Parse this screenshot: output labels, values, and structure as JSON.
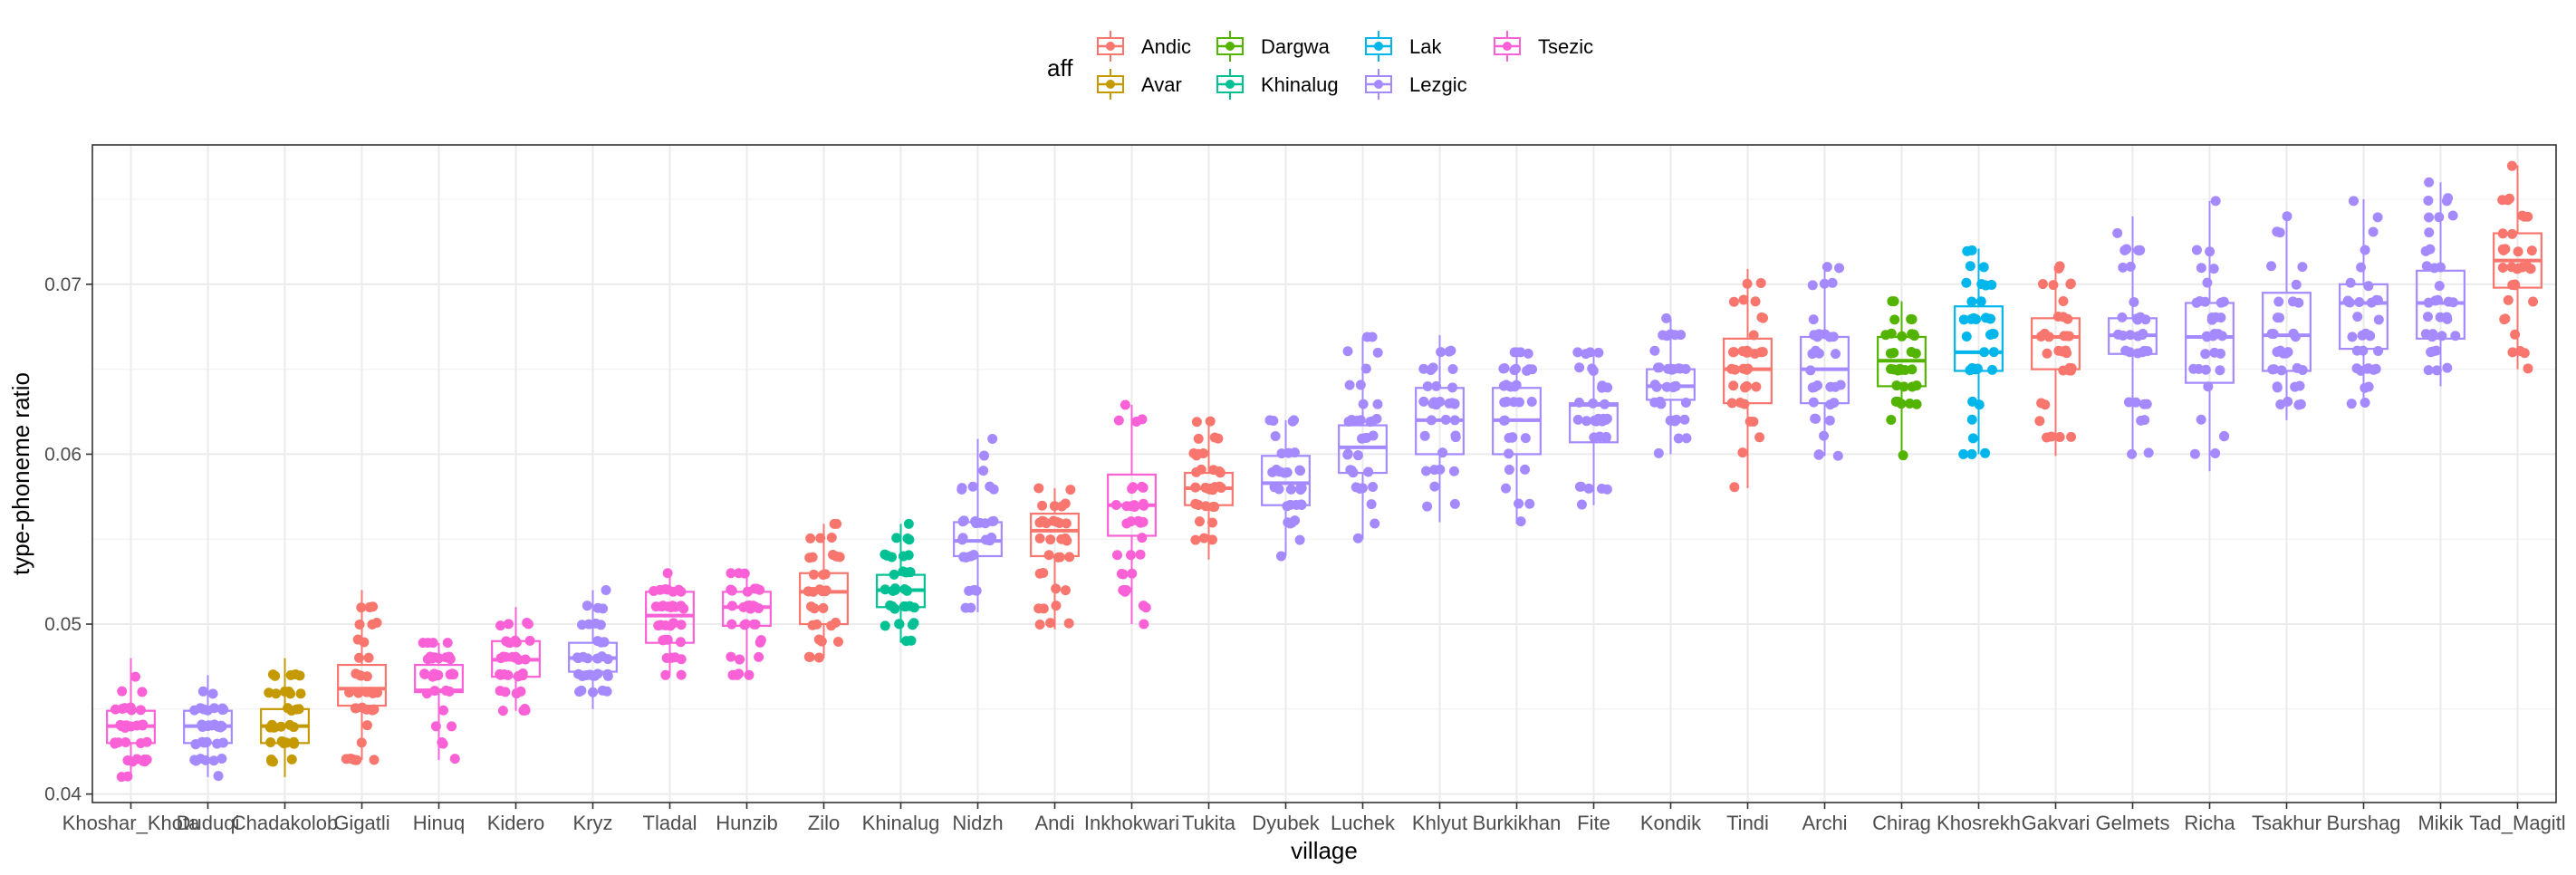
{
  "chart_data": {
    "type": "box",
    "xlabel": "village",
    "ylabel": "type-phoneme ratio",
    "ylim": [
      0.0395,
      0.0782
    ],
    "yticks": [
      0.04,
      0.05,
      0.06,
      0.07
    ],
    "ytick_labels": [
      "0.04",
      "0.05",
      "0.06",
      "0.07"
    ],
    "grid": true,
    "legend": {
      "title": "aff",
      "position": "top",
      "entries": [
        {
          "name": "Andic",
          "color": "#F8766D"
        },
        {
          "name": "Avar",
          "color": "#C49A00"
        },
        {
          "name": "Dargwa",
          "color": "#53B400"
        },
        {
          "name": "Khinalug",
          "color": "#00C094"
        },
        {
          "name": "Lak",
          "color": "#00B6EB"
        },
        {
          "name": "Lezgic",
          "color": "#A58AFF"
        },
        {
          "name": "Tsezic",
          "color": "#FB61D7"
        }
      ]
    },
    "villages": [
      {
        "name": "Khoshar_Khota",
        "aff": "Tsezic",
        "q1": 0.043,
        "median": 0.044,
        "q3": 0.0449,
        "wlo": 0.041,
        "whi": 0.048
      },
      {
        "name": "Duduqi",
        "aff": "Lezgic",
        "q1": 0.043,
        "median": 0.044,
        "q3": 0.0449,
        "wlo": 0.041,
        "whi": 0.047
      },
      {
        "name": "Chadakolob",
        "aff": "Avar",
        "q1": 0.043,
        "median": 0.044,
        "q3": 0.045,
        "wlo": 0.041,
        "whi": 0.048
      },
      {
        "name": "Gigatli",
        "aff": "Andic",
        "q1": 0.0452,
        "median": 0.0462,
        "q3": 0.0476,
        "wlo": 0.042,
        "whi": 0.052
      },
      {
        "name": "Hinuq",
        "aff": "Tsezic",
        "q1": 0.046,
        "median": 0.0461,
        "q3": 0.0476,
        "wlo": 0.042,
        "whi": 0.0489
      },
      {
        "name": "Kidero",
        "aff": "Tsezic",
        "q1": 0.0469,
        "median": 0.0479,
        "q3": 0.049,
        "wlo": 0.0449,
        "whi": 0.051
      },
      {
        "name": "Kryz",
        "aff": "Lezgic",
        "q1": 0.0472,
        "median": 0.048,
        "q3": 0.0489,
        "wlo": 0.045,
        "whi": 0.052
      },
      {
        "name": "Tladal",
        "aff": "Tsezic",
        "q1": 0.0489,
        "median": 0.0505,
        "q3": 0.0519,
        "wlo": 0.047,
        "whi": 0.053
      },
      {
        "name": "Hunzib",
        "aff": "Tsezic",
        "q1": 0.0499,
        "median": 0.051,
        "q3": 0.0519,
        "wlo": 0.047,
        "whi": 0.053
      },
      {
        "name": "Zilo",
        "aff": "Andic",
        "q1": 0.05,
        "median": 0.0519,
        "q3": 0.053,
        "wlo": 0.048,
        "whi": 0.0559
      },
      {
        "name": "Khinalug",
        "aff": "Khinalug",
        "q1": 0.051,
        "median": 0.052,
        "q3": 0.0529,
        "wlo": 0.0489,
        "whi": 0.0559
      },
      {
        "name": "Nidzh",
        "aff": "Lezgic",
        "q1": 0.054,
        "median": 0.0549,
        "q3": 0.056,
        "wlo": 0.0507,
        "whi": 0.0609
      },
      {
        "name": "Andi",
        "aff": "Andic",
        "q1": 0.054,
        "median": 0.0555,
        "q3": 0.0565,
        "wlo": 0.0497,
        "whi": 0.058
      },
      {
        "name": "Inkhokwari",
        "aff": "Tsezic",
        "q1": 0.0552,
        "median": 0.057,
        "q3": 0.0588,
        "wlo": 0.05,
        "whi": 0.0629
      },
      {
        "name": "Tukita",
        "aff": "Andic",
        "q1": 0.057,
        "median": 0.058,
        "q3": 0.0589,
        "wlo": 0.0538,
        "whi": 0.062
      },
      {
        "name": "Dyubek",
        "aff": "Lezgic",
        "q1": 0.057,
        "median": 0.0583,
        "q3": 0.0599,
        "wlo": 0.054,
        "whi": 0.062
      },
      {
        "name": "Luchek",
        "aff": "Lezgic",
        "q1": 0.0589,
        "median": 0.0604,
        "q3": 0.0617,
        "wlo": 0.055,
        "whi": 0.0669
      },
      {
        "name": "Khlyut",
        "aff": "Lezgic",
        "q1": 0.06,
        "median": 0.062,
        "q3": 0.0639,
        "wlo": 0.056,
        "whi": 0.067
      },
      {
        "name": "Burkikhan",
        "aff": "Lezgic",
        "q1": 0.06,
        "median": 0.062,
        "q3": 0.0639,
        "wlo": 0.0559,
        "whi": 0.066
      },
      {
        "name": "Fite",
        "aff": "Lezgic",
        "q1": 0.0607,
        "median": 0.0629,
        "q3": 0.063,
        "wlo": 0.057,
        "whi": 0.066
      },
      {
        "name": "Kondik",
        "aff": "Lezgic",
        "q1": 0.0632,
        "median": 0.064,
        "q3": 0.065,
        "wlo": 0.06,
        "whi": 0.068
      },
      {
        "name": "Tindi",
        "aff": "Andic",
        "q1": 0.063,
        "median": 0.065,
        "q3": 0.0668,
        "wlo": 0.058,
        "whi": 0.0709
      },
      {
        "name": "Archi",
        "aff": "Lezgic",
        "q1": 0.063,
        "median": 0.065,
        "q3": 0.0669,
        "wlo": 0.0599,
        "whi": 0.0711
      },
      {
        "name": "Chirag",
        "aff": "Dargwa",
        "q1": 0.064,
        "median": 0.0655,
        "q3": 0.0669,
        "wlo": 0.0597,
        "whi": 0.069
      },
      {
        "name": "Khosrekh",
        "aff": "Lak",
        "q1": 0.0649,
        "median": 0.066,
        "q3": 0.0687,
        "wlo": 0.06,
        "whi": 0.0721
      },
      {
        "name": "Gakvari",
        "aff": "Andic",
        "q1": 0.065,
        "median": 0.0669,
        "q3": 0.068,
        "wlo": 0.0599,
        "whi": 0.0711
      },
      {
        "name": "Gelmets",
        "aff": "Lezgic",
        "q1": 0.0659,
        "median": 0.067,
        "q3": 0.068,
        "wlo": 0.0599,
        "whi": 0.074
      },
      {
        "name": "Richa",
        "aff": "Lezgic",
        "q1": 0.0642,
        "median": 0.0669,
        "q3": 0.0689,
        "wlo": 0.059,
        "whi": 0.0749
      },
      {
        "name": "Tsakhur",
        "aff": "Lezgic",
        "q1": 0.0649,
        "median": 0.067,
        "q3": 0.0695,
        "wlo": 0.062,
        "whi": 0.074
      },
      {
        "name": "Burshag",
        "aff": "Lezgic",
        "q1": 0.0662,
        "median": 0.0689,
        "q3": 0.07,
        "wlo": 0.0628,
        "whi": 0.075
      },
      {
        "name": "Mikik",
        "aff": "Lezgic",
        "q1": 0.0668,
        "median": 0.0689,
        "q3": 0.0708,
        "wlo": 0.064,
        "whi": 0.076
      },
      {
        "name": "Tad_Magitl",
        "aff": "Andic",
        "q1": 0.0698,
        "median": 0.0714,
        "q3": 0.073,
        "wlo": 0.065,
        "whi": 0.077
      }
    ]
  }
}
